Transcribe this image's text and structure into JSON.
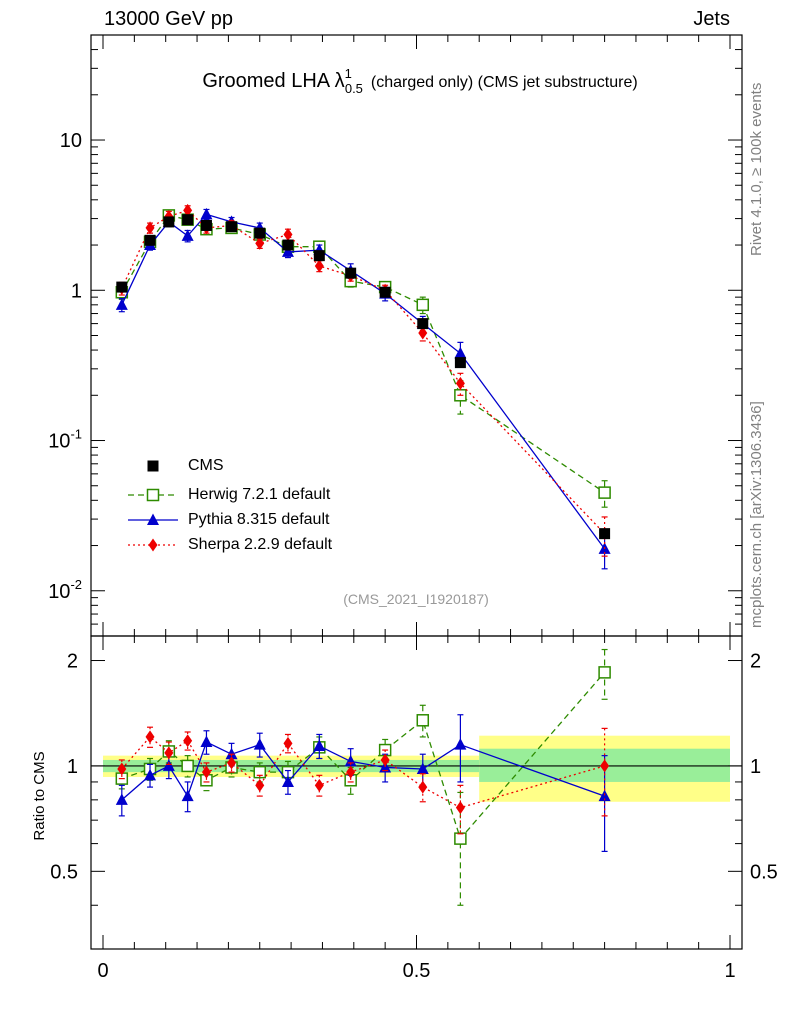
{
  "header": {
    "left": "13000 GeV pp",
    "right": "Jets",
    "title_prefix": "Groomed LHA ",
    "title_lambda": "λ",
    "title_sup": "1",
    "title_sub": "0.5",
    "title_suffix": "(charged only) (CMS jet substructure)"
  },
  "side_labels": {
    "rivet": "Rivet 4.1.0, ≥ 100k events",
    "mcplots": "mcplots.cern.ch [arXiv:1306.3436]"
  },
  "analysis_tag": "(CMS_2021_I1920187)",
  "chart_data": [
    {
      "type": "scatter",
      "panel": "main",
      "yscale": "log",
      "xlim": [
        0,
        1
      ],
      "ylim": [
        0.005,
        50
      ],
      "xlabel": "",
      "ylabel": "",
      "yticks": [
        "10^-2",
        "10^-1",
        "1",
        "10"
      ],
      "x": [
        0.03,
        0.075,
        0.105,
        0.135,
        0.165,
        0.205,
        0.25,
        0.295,
        0.345,
        0.395,
        0.45,
        0.51,
        0.57,
        0.8
      ],
      "series": [
        {
          "name": "CMS",
          "color": "#000000",
          "marker": "square-filled",
          "values": [
            1.05,
            2.15,
            2.85,
            2.95,
            2.7,
            2.65,
            2.4,
            2.0,
            1.7,
            1.3,
            0.97,
            0.6,
            0.33,
            0.024
          ],
          "errors": [
            0,
            0,
            0,
            0,
            0,
            0,
            0,
            0,
            0,
            0,
            0,
            0,
            0,
            0
          ]
        },
        {
          "name": "Herwig 7.2.1 default",
          "color": "#2e8b00",
          "marker": "square-open",
          "line": "dashed",
          "values": [
            0.97,
            2.1,
            3.15,
            2.95,
            2.55,
            2.6,
            2.35,
            1.95,
            1.95,
            1.15,
            1.05,
            0.8,
            0.2,
            0.045
          ],
          "errors": [
            0.1,
            0.15,
            0.2,
            0.2,
            0.15,
            0.15,
            0.15,
            0.15,
            0.15,
            0.1,
            0.08,
            0.1,
            0.05,
            0.009
          ]
        },
        {
          "name": "Pythia 8.315 default",
          "color": "#0000cc",
          "marker": "triangle",
          "line": "solid",
          "values": [
            0.8,
            2.0,
            2.85,
            2.3,
            3.2,
            2.85,
            2.6,
            1.8,
            1.85,
            1.35,
            0.95,
            0.6,
            0.38,
            0.019
          ],
          "errors": [
            0.08,
            0.15,
            0.2,
            0.2,
            0.25,
            0.2,
            0.2,
            0.15,
            0.15,
            0.15,
            0.1,
            0.07,
            0.07,
            0.005
          ]
        },
        {
          "name": "Sherpa 2.2.9 default",
          "color": "#ee0000",
          "marker": "diamond",
          "line": "dotted",
          "values": [
            1.03,
            2.6,
            3.1,
            3.4,
            2.6,
            2.7,
            2.05,
            2.35,
            1.45,
            1.25,
            1.0,
            0.52,
            0.24,
            0.024
          ],
          "errors": [
            0.1,
            0.2,
            0.25,
            0.25,
            0.2,
            0.2,
            0.15,
            0.2,
            0.12,
            0.1,
            0.08,
            0.06,
            0.04,
            0.007
          ]
        }
      ]
    },
    {
      "type": "scatter",
      "panel": "ratio",
      "yscale": "linear",
      "xlim": [
        0,
        1
      ],
      "ylim": [
        0.3,
        2.35
      ],
      "xlabel": "",
      "ylabel": "Ratio to CMS",
      "yticks": [
        0.5,
        1,
        2
      ],
      "xticks": [
        0,
        0.5,
        1
      ],
      "x": [
        0.03,
        0.075,
        0.105,
        0.135,
        0.165,
        0.205,
        0.25,
        0.295,
        0.345,
        0.395,
        0.45,
        0.51,
        0.57,
        0.8
      ],
      "bands": [
        {
          "x0": 0.0,
          "x1": 0.6,
          "inner": [
            0.96,
            1.04
          ],
          "outer": [
            0.93,
            1.07
          ]
        },
        {
          "x0": 0.6,
          "x1": 1.0,
          "inner": [
            0.9,
            1.12
          ],
          "outer": [
            0.79,
            1.22
          ]
        }
      ],
      "series": [
        {
          "name": "Herwig 7.2.1 default",
          "color": "#2e8b00",
          "marker": "square-open",
          "line": "dashed",
          "values": [
            0.92,
            0.98,
            1.1,
            1.0,
            0.91,
            0.99,
            0.96,
            0.96,
            1.13,
            0.91,
            1.11,
            1.35,
            0.62,
            1.85
          ],
          "errors": [
            0.06,
            0.07,
            0.08,
            0.07,
            0.06,
            0.06,
            0.06,
            0.07,
            0.08,
            0.08,
            0.08,
            0.14,
            0.22,
            0.3
          ]
        },
        {
          "name": "Pythia 8.315 default",
          "color": "#0000cc",
          "marker": "triangle",
          "line": "solid",
          "values": [
            0.8,
            0.94,
            1.0,
            0.82,
            1.17,
            1.08,
            1.15,
            0.9,
            1.14,
            1.03,
            0.99,
            0.98,
            1.15,
            0.82
          ],
          "errors": [
            0.08,
            0.07,
            0.08,
            0.08,
            0.09,
            0.08,
            0.09,
            0.07,
            0.09,
            0.09,
            0.09,
            0.1,
            0.25,
            0.25
          ]
        },
        {
          "name": "Sherpa 2.2.9 default",
          "color": "#ee0000",
          "marker": "diamond",
          "line": "dotted",
          "values": [
            0.98,
            1.21,
            1.09,
            1.18,
            0.96,
            1.02,
            0.88,
            1.16,
            0.88,
            0.96,
            1.04,
            0.87,
            0.76,
            1.0
          ],
          "errors": [
            0.06,
            0.08,
            0.08,
            0.07,
            0.06,
            0.06,
            0.06,
            0.07,
            0.06,
            0.06,
            0.07,
            0.08,
            0.12,
            0.28
          ]
        }
      ]
    }
  ]
}
